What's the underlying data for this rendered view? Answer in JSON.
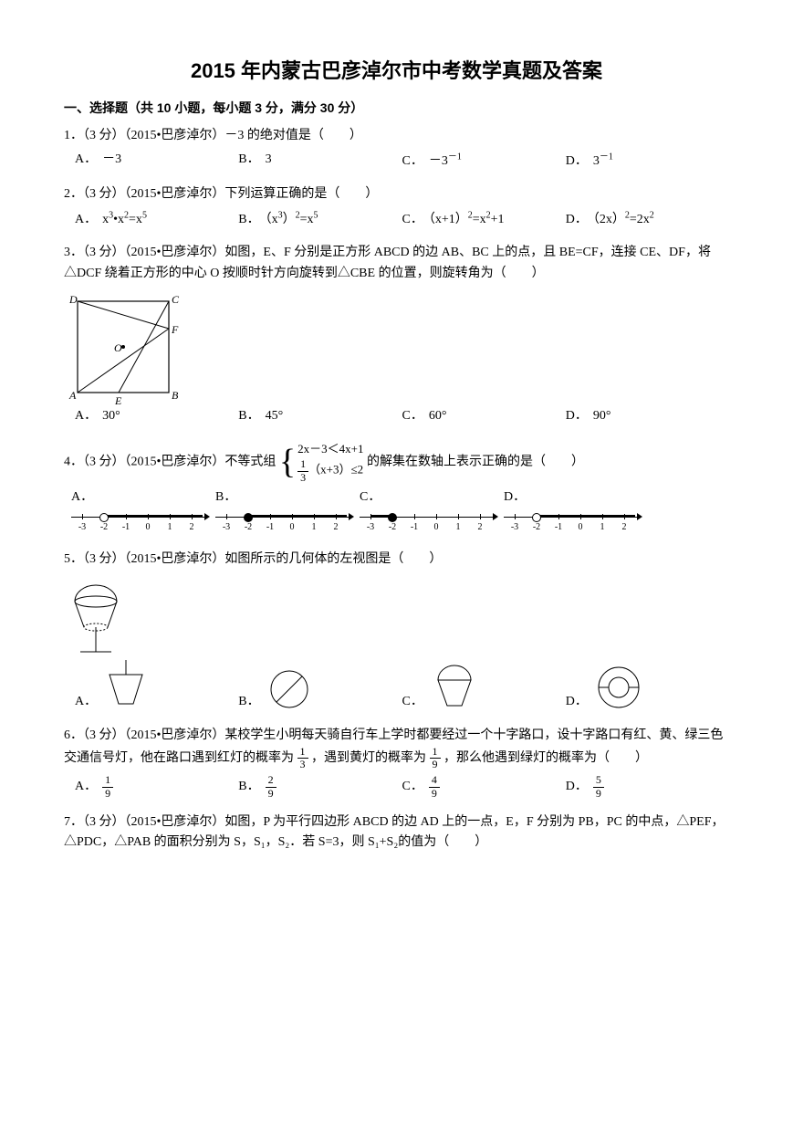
{
  "title": "2015 年内蒙古巴彦淖尔市中考数学真题及答案",
  "section1": "一、选择题（共 10 小题，每小题 3 分，满分 30 分）",
  "q1": {
    "text": "1．（3 分）（2015•巴彦淖尔）－3 的绝对值是（　　）",
    "A": "－3",
    "B": "3",
    "C": "－3⁻¹",
    "D": "3⁻¹"
  },
  "q2": {
    "text": "2．（3 分）（2015•巴彦淖尔）下列运算正确的是（　　）",
    "A": "x³•x²=x⁵",
    "B": "（x³）²=x⁵",
    "C": "（x+1）²=x²+1",
    "D": "（2x）²=2x²"
  },
  "q3": {
    "text": "3．（3 分）（2015•巴彦淖尔）如图，E、F 分别是正方形 ABCD 的边 AB、BC 上的点，且 BE=CF，连接 CE、DF，将△DCF 绕着正方形的中心 O 按顺时针方向旋转到△CBE 的位置，则旋转角为（　　）",
    "A": "30°",
    "B": "45°",
    "C": "60°",
    "D": "90°"
  },
  "q4": {
    "text_a": "4．（3 分）（2015•巴彦淖尔）不等式组",
    "sys1": "2x－3＜4x+1",
    "sys2a": "1",
    "sys2b": "3",
    "sys2c": "（x+3）≤2",
    "text_b": "的解集在数轴上表示正确的是（　　）",
    "ticks": [
      -3,
      -2,
      -1,
      0,
      1,
      2
    ]
  },
  "q5": {
    "text": "5．（3 分）（2015•巴彦淖尔）如图所示的几何体的左视图是（　　）"
  },
  "q6": {
    "text_a": "6．（3 分）（2015•巴彦淖尔）某校学生小明每天骑自行车上学时都要经过一个十字路口，设十字路口有红、黄、绿三色交通信号灯，他在路口遇到红灯的概率为",
    "p1n": "1",
    "p1d": "3",
    "text_b": "，遇到黄灯的概率为",
    "p2n": "1",
    "p2d": "9",
    "text_c": "，那么他遇到绿灯的概率为（　　）",
    "An": "1",
    "Ad": "9",
    "Bn": "2",
    "Bd": "9",
    "Cn": "4",
    "Cd": "9",
    "Dn": "5",
    "Dd": "9"
  },
  "q7": {
    "text": "7．（3 分）（2015•巴彦淖尔）如图，P 为平行四边形 ABCD 的边 AD 上的一点，E，F 分别为 PB，PC 的中点，△PEF，△PDC，△PAB 的面积分别为 S，S₁，S₂．若 S=3，则 S₁+S₂的值为（　　）"
  },
  "letters": {
    "A": "A．",
    "B": "B．",
    "C": "C．",
    "D": "D．"
  }
}
